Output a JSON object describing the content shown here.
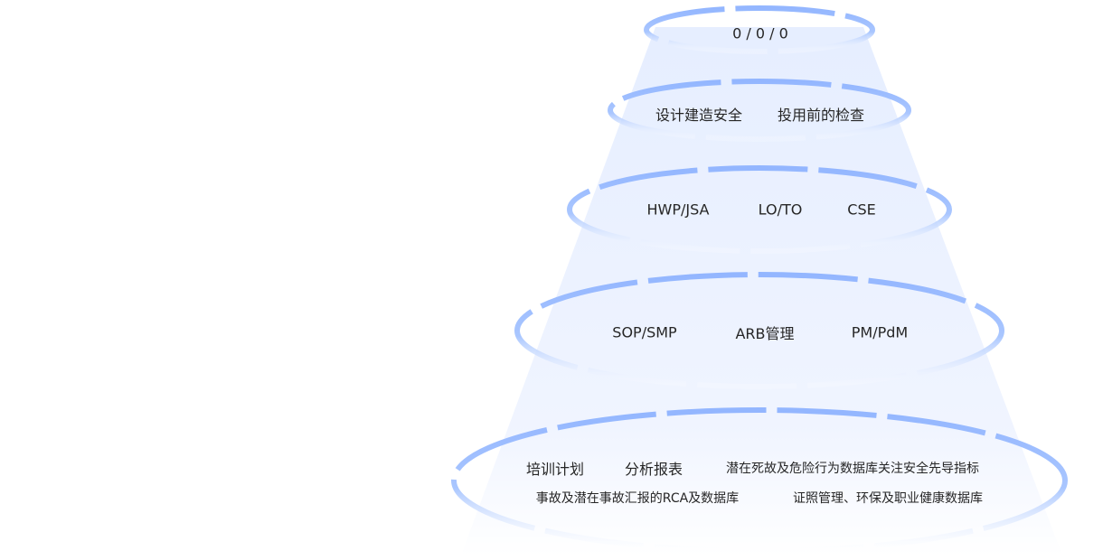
{
  "colors": {
    "ring": "#9bbcff",
    "cone": "#e8f0ff"
  },
  "levels": [
    {
      "items": [
        "0 / 0 / 0"
      ]
    },
    {
      "items": [
        "设计建造安全",
        "投用前的检查"
      ]
    },
    {
      "items": [
        "HWP/JSA",
        "LO/TO",
        "CSE"
      ]
    },
    {
      "items": [
        "SOP/SMP",
        "ARB管理",
        "PM/PdM"
      ]
    },
    {
      "items": [
        "培训计划",
        "分析报表",
        "潜在死故及危险行为数据库关注安全先导指标",
        "事故及潜在事故汇报的RCA及数据库",
        "证照管理、环保及职业健康数据库"
      ]
    }
  ]
}
